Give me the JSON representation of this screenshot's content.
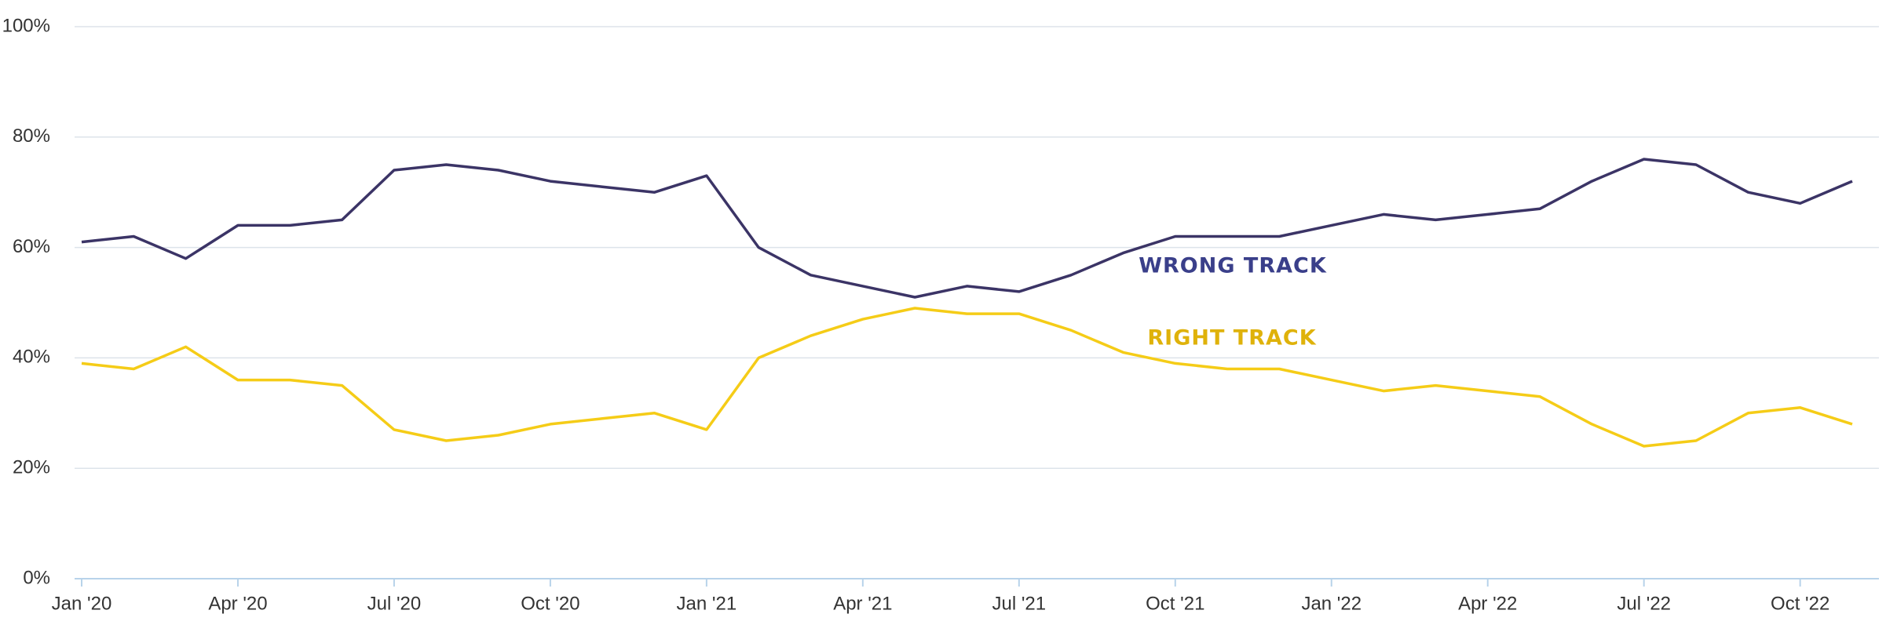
{
  "chart_data": {
    "type": "line",
    "x": [
      "2020-01",
      "2020-02",
      "2020-03",
      "2020-04",
      "2020-05",
      "2020-06",
      "2020-07",
      "2020-08",
      "2020-09",
      "2020-10",
      "2020-11",
      "2020-12",
      "2021-01",
      "2021-02",
      "2021-03",
      "2021-04",
      "2021-05",
      "2021-06",
      "2021-07",
      "2021-08",
      "2021-09",
      "2021-10",
      "2021-11",
      "2021-12",
      "2022-01",
      "2022-02",
      "2022-03",
      "2022-04",
      "2022-05",
      "2022-06",
      "2022-07",
      "2022-08",
      "2022-09",
      "2022-10",
      "2022-11"
    ],
    "series": [
      {
        "name": "WRONG TRACK",
        "color": "#3b3466",
        "label_color": "#3a3f8a",
        "values": [
          61,
          62,
          58,
          64,
          64,
          65,
          74,
          75,
          74,
          72,
          71,
          70,
          73,
          60,
          55,
          53,
          51,
          53,
          52,
          55,
          59,
          62,
          62,
          62,
          64,
          66,
          65,
          66,
          67,
          72,
          76,
          75,
          70,
          68,
          72
        ]
      },
      {
        "name": "RIGHT TRACK",
        "color": "#f5cc17",
        "label_color": "#dfb20a",
        "values": [
          39,
          38,
          42,
          36,
          36,
          35,
          27,
          25,
          26,
          28,
          29,
          30,
          27,
          40,
          44,
          47,
          49,
          48,
          48,
          45,
          41,
          39,
          38,
          38,
          36,
          34,
          35,
          34,
          33,
          28,
          24,
          25,
          30,
          31,
          28
        ]
      }
    ],
    "xlim": [
      "2020-01",
      "2022-11"
    ],
    "xticks": [
      {
        "value": "2020-01",
        "label": "Jan '20"
      },
      {
        "value": "2020-04",
        "label": "Apr '20"
      },
      {
        "value": "2020-07",
        "label": "Jul '20"
      },
      {
        "value": "2020-10",
        "label": "Oct '20"
      },
      {
        "value": "2021-01",
        "label": "Jan '21"
      },
      {
        "value": "2021-04",
        "label": "Apr '21"
      },
      {
        "value": "2021-07",
        "label": "Jul '21"
      },
      {
        "value": "2021-10",
        "label": "Oct '21"
      },
      {
        "value": "2022-01",
        "label": "Jan '22"
      },
      {
        "value": "2022-04",
        "label": "Apr '22"
      },
      {
        "value": "2022-07",
        "label": "Jul '22"
      },
      {
        "value": "2022-10",
        "label": "Oct '22"
      }
    ],
    "ylim": [
      0,
      100
    ],
    "yticks": [
      {
        "value": 0,
        "label": "0%"
      },
      {
        "value": 20,
        "label": "20%"
      },
      {
        "value": 40,
        "label": "40%"
      },
      {
        "value": 60,
        "label": "60%"
      },
      {
        "value": 80,
        "label": "80%"
      },
      {
        "value": 100,
        "label": "100%"
      }
    ],
    "grid": true
  }
}
